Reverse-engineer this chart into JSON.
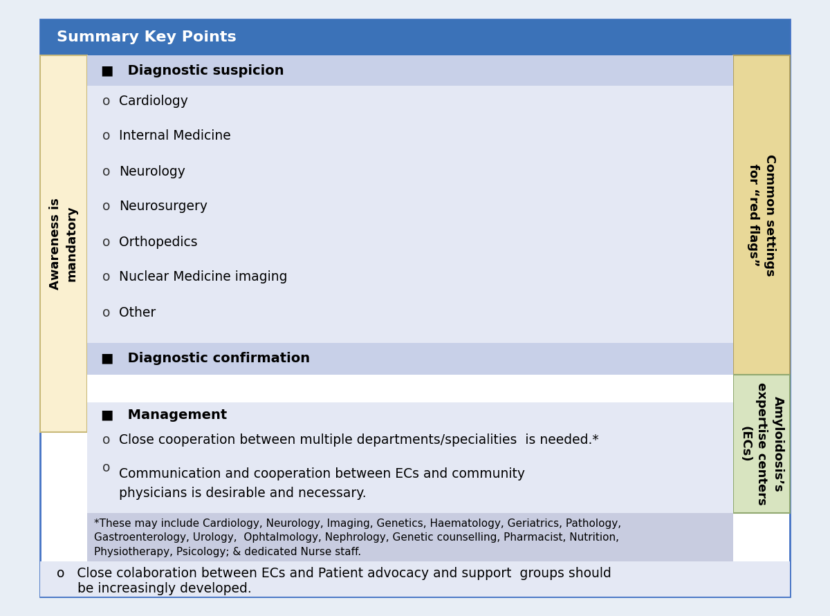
{
  "fig_bg": "#E8EEF5",
  "title": "Summary Key Points",
  "title_bg": "#3B72B8",
  "title_color": "#FFFFFF",
  "title_fontsize": 16,
  "outer_bg": "#FFFFFF",
  "outer_border": "#4472C4",
  "left_label": "Awareness is\nmandatory",
  "left_bg": "#FAF0D0",
  "left_border": "#C8B878",
  "right_top_label": "Common settings\nfor “red flags”",
  "right_top_bg": "#E8D898",
  "right_top_border": "#B0A060",
  "right_bottom_label": "Amyloidosis’s\nexpertise centers\n(ECs)",
  "right_bottom_bg": "#D8E4C0",
  "right_bottom_border": "#90A870",
  "sec1_header": "■   Diagnostic suspicion",
  "sec1_header_bg": "#C8D0E8",
  "sec1_items_bg": "#E4E8F4",
  "sec1_items": [
    "Cardiology",
    "Internal Medicine",
    "Neurology",
    "Neurosurgery",
    "Orthopedics",
    "Nuclear Medicine imaging",
    "Other"
  ],
  "sec2_header": "■   Diagnostic confirmation",
  "sec2_header_bg": "#C8D0E8",
  "gap_bg": "#FFFFFF",
  "sec3_bg": "#E4E8F4",
  "sec3_header": "■   Management",
  "sec3_items": [
    "Close cooperation between multiple departments/specialities  is needed.*",
    "Communication and cooperation between ECs and community\nphysicians is desirable and necessary."
  ],
  "footnote_bg": "#C8CCE0",
  "footnote_text": "*These may include Cardiology, Neurology, Imaging, Genetics, Haematology, Geriatrics, Pathology,\nGastroenterology, Urology,  Ophtalmology, Nephrology, Genetic counselling, Pharmacist, Nutrition,\nPhysiotherapy, Psicology; & dedicated Nurse staff.",
  "last_item_bg": "#E4E8F4",
  "last_item_text1": "o   Close colaboration between ECs and Patient advocacy and support  groups should",
  "last_item_text2": "     be increasingly developed.",
  "body_fontsize": 13.5,
  "header_fontsize": 14,
  "small_fontsize": 11,
  "side_fontsize": 13
}
